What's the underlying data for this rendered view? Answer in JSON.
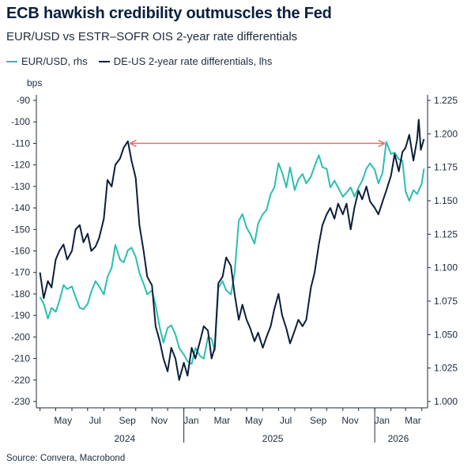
{
  "title": "ECB hawkish credibility outmuscles the Fed",
  "subtitle": "EUR/USD vs ESTR–SOFR OIS 2-year rate differentials",
  "source": "Source: Convera, Macrobond",
  "chart_data": {
    "type": "line",
    "legend_position": "top-left",
    "left_axis_unit": "bps",
    "left_axis": {
      "range": [
        -230,
        -90
      ],
      "ticks": [
        "-90",
        "-100",
        "-110",
        "-120",
        "-130",
        "-140",
        "-150",
        "-160",
        "-170",
        "-180",
        "-190",
        "-200",
        "-210",
        "-220",
        "-230"
      ]
    },
    "right_axis": {
      "range": [
        1.0,
        1.225
      ],
      "ticks": [
        "1.225",
        "1.200",
        "1.175",
        "1.150",
        "1.125",
        "1.100",
        "1.075",
        "1.050",
        "1.025",
        "1.000"
      ]
    },
    "x_ticks": [
      "May",
      "Jul",
      "Sep",
      "Nov",
      "Jan",
      "Mar",
      "May",
      "Jul",
      "Sep",
      "Nov",
      "Jan",
      "Mar"
    ],
    "x_years": [
      "2024",
      "2025",
      "2026"
    ],
    "annotation": {
      "type": "double-arrow",
      "color": "#e07070",
      "from": "2024-09-20",
      "to": "2026-01-20",
      "level": -110
    },
    "series": [
      {
        "name": "EUR/USD, rhs",
        "axis": "right",
        "color": "#2bbfb0",
        "points": [
          [
            "2024-04-01",
            1.078
          ],
          [
            "2024-04-08",
            1.073
          ],
          [
            "2024-04-16",
            1.062
          ],
          [
            "2024-04-23",
            1.07
          ],
          [
            "2024-05-01",
            1.067
          ],
          [
            "2024-05-08",
            1.075
          ],
          [
            "2024-05-16",
            1.087
          ],
          [
            "2024-05-23",
            1.084
          ],
          [
            "2024-06-01",
            1.086
          ],
          [
            "2024-06-08",
            1.078
          ],
          [
            "2024-06-16",
            1.07
          ],
          [
            "2024-06-23",
            1.069
          ],
          [
            "2024-07-01",
            1.073
          ],
          [
            "2024-07-08",
            1.082
          ],
          [
            "2024-07-16",
            1.09
          ],
          [
            "2024-07-23",
            1.086
          ],
          [
            "2024-08-01",
            1.08
          ],
          [
            "2024-08-08",
            1.093
          ],
          [
            "2024-08-16",
            1.1
          ],
          [
            "2024-08-23",
            1.117
          ],
          [
            "2024-09-01",
            1.106
          ],
          [
            "2024-09-08",
            1.104
          ],
          [
            "2024-09-16",
            1.113
          ],
          [
            "2024-09-23",
            1.115
          ],
          [
            "2024-10-01",
            1.108
          ],
          [
            "2024-10-08",
            1.096
          ],
          [
            "2024-10-16",
            1.088
          ],
          [
            "2024-10-23",
            1.08
          ],
          [
            "2024-11-01",
            1.083
          ],
          [
            "2024-11-08",
            1.072
          ],
          [
            "2024-11-16",
            1.055
          ],
          [
            "2024-11-23",
            1.044
          ],
          [
            "2024-12-01",
            1.055
          ],
          [
            "2024-12-08",
            1.057
          ],
          [
            "2024-12-16",
            1.05
          ],
          [
            "2024-12-23",
            1.04
          ],
          [
            "2025-01-01",
            1.035
          ],
          [
            "2025-01-08",
            1.03
          ],
          [
            "2025-01-16",
            1.028
          ],
          [
            "2025-01-23",
            1.04
          ],
          [
            "2025-02-01",
            1.034
          ],
          [
            "2025-02-08",
            1.032
          ],
          [
            "2025-02-16",
            1.048
          ],
          [
            "2025-02-23",
            1.047
          ],
          [
            "2025-03-01",
            1.038
          ],
          [
            "2025-03-08",
            1.085
          ],
          [
            "2025-03-16",
            1.09
          ],
          [
            "2025-03-23",
            1.083
          ],
          [
            "2025-04-01",
            1.08
          ],
          [
            "2025-04-08",
            1.096
          ],
          [
            "2025-04-16",
            1.135
          ],
          [
            "2025-04-23",
            1.14
          ],
          [
            "2025-05-01",
            1.13
          ],
          [
            "2025-05-08",
            1.125
          ],
          [
            "2025-05-16",
            1.118
          ],
          [
            "2025-05-23",
            1.133
          ],
          [
            "2025-06-01",
            1.14
          ],
          [
            "2025-06-08",
            1.143
          ],
          [
            "2025-06-16",
            1.155
          ],
          [
            "2025-06-23",
            1.16
          ],
          [
            "2025-07-01",
            1.178
          ],
          [
            "2025-07-08",
            1.171
          ],
          [
            "2025-07-16",
            1.16
          ],
          [
            "2025-07-23",
            1.175
          ],
          [
            "2025-08-01",
            1.158
          ],
          [
            "2025-08-08",
            1.166
          ],
          [
            "2025-08-16",
            1.17
          ],
          [
            "2025-08-23",
            1.163
          ],
          [
            "2025-09-01",
            1.168
          ],
          [
            "2025-09-08",
            1.176
          ],
          [
            "2025-09-16",
            1.184
          ],
          [
            "2025-09-23",
            1.175
          ],
          [
            "2025-10-01",
            1.174
          ],
          [
            "2025-10-08",
            1.16
          ],
          [
            "2025-10-16",
            1.165
          ],
          [
            "2025-10-23",
            1.16
          ],
          [
            "2025-11-01",
            1.153
          ],
          [
            "2025-11-08",
            1.156
          ],
          [
            "2025-11-16",
            1.16
          ],
          [
            "2025-11-23",
            1.153
          ],
          [
            "2025-12-01",
            1.16
          ],
          [
            "2025-12-08",
            1.165
          ],
          [
            "2025-12-16",
            1.174
          ],
          [
            "2025-12-23",
            1.178
          ],
          [
            "2026-01-01",
            1.173
          ],
          [
            "2026-01-08",
            1.163
          ],
          [
            "2026-01-16",
            1.171
          ],
          [
            "2026-01-23",
            1.194
          ],
          [
            "2026-02-01",
            1.185
          ],
          [
            "2026-02-08",
            1.186
          ],
          [
            "2026-02-16",
            1.181
          ],
          [
            "2026-02-23",
            1.18
          ],
          [
            "2026-03-01",
            1.157
          ],
          [
            "2026-03-08",
            1.15
          ],
          [
            "2026-03-16",
            1.158
          ],
          [
            "2026-03-23",
            1.155
          ],
          [
            "2026-04-01",
            1.163
          ],
          [
            "2026-04-05",
            1.174
          ]
        ]
      },
      {
        "name": "DE-US 2-year rate differentials, lhs",
        "axis": "left",
        "color": "#0c1e3c",
        "points": [
          [
            "2024-04-01",
            -170
          ],
          [
            "2024-04-08",
            -182
          ],
          [
            "2024-04-16",
            -174
          ],
          [
            "2024-04-23",
            -177
          ],
          [
            "2024-05-01",
            -164
          ],
          [
            "2024-05-08",
            -160
          ],
          [
            "2024-05-16",
            -157
          ],
          [
            "2024-05-23",
            -164
          ],
          [
            "2024-06-01",
            -160
          ],
          [
            "2024-06-08",
            -150
          ],
          [
            "2024-06-16",
            -148
          ],
          [
            "2024-06-23",
            -156
          ],
          [
            "2024-07-01",
            -152
          ],
          [
            "2024-07-08",
            -160
          ],
          [
            "2024-07-16",
            -158
          ],
          [
            "2024-07-23",
            -154
          ],
          [
            "2024-08-01",
            -145
          ],
          [
            "2024-08-08",
            -127
          ],
          [
            "2024-08-16",
            -130
          ],
          [
            "2024-08-23",
            -120
          ],
          [
            "2024-09-01",
            -117
          ],
          [
            "2024-09-08",
            -112
          ],
          [
            "2024-09-16",
            -109
          ],
          [
            "2024-09-23",
            -118
          ],
          [
            "2024-10-01",
            -126
          ],
          [
            "2024-10-08",
            -148
          ],
          [
            "2024-10-16",
            -160
          ],
          [
            "2024-10-23",
            -172
          ],
          [
            "2024-11-01",
            -176
          ],
          [
            "2024-11-08",
            -195
          ],
          [
            "2024-11-16",
            -202
          ],
          [
            "2024-11-23",
            -210
          ],
          [
            "2024-12-01",
            -216
          ],
          [
            "2024-12-08",
            -205
          ],
          [
            "2024-12-16",
            -210
          ],
          [
            "2024-12-23",
            -220
          ],
          [
            "2025-01-01",
            -212
          ],
          [
            "2025-01-08",
            -218
          ],
          [
            "2025-01-16",
            -205
          ],
          [
            "2025-01-23",
            -210
          ],
          [
            "2025-02-01",
            -202
          ],
          [
            "2025-02-08",
            -195
          ],
          [
            "2025-02-16",
            -197
          ],
          [
            "2025-02-23",
            -210
          ],
          [
            "2025-03-01",
            -205
          ],
          [
            "2025-03-08",
            -175
          ],
          [
            "2025-03-16",
            -172
          ],
          [
            "2025-03-23",
            -163
          ],
          [
            "2025-04-01",
            -167
          ],
          [
            "2025-04-08",
            -180
          ],
          [
            "2025-04-16",
            -192
          ],
          [
            "2025-04-23",
            -185
          ],
          [
            "2025-05-01",
            -192
          ],
          [
            "2025-05-08",
            -196
          ],
          [
            "2025-05-16",
            -202
          ],
          [
            "2025-05-23",
            -198
          ],
          [
            "2025-06-01",
            -205
          ],
          [
            "2025-06-08",
            -200
          ],
          [
            "2025-06-16",
            -195
          ],
          [
            "2025-06-23",
            -187
          ],
          [
            "2025-07-01",
            -180
          ],
          [
            "2025-07-08",
            -190
          ],
          [
            "2025-07-16",
            -196
          ],
          [
            "2025-07-23",
            -203
          ],
          [
            "2025-08-01",
            -197
          ],
          [
            "2025-08-08",
            -192
          ],
          [
            "2025-08-16",
            -195
          ],
          [
            "2025-08-23",
            -192
          ],
          [
            "2025-09-01",
            -177
          ],
          [
            "2025-09-08",
            -170
          ],
          [
            "2025-09-16",
            -157
          ],
          [
            "2025-09-23",
            -148
          ],
          [
            "2025-10-01",
            -143
          ],
          [
            "2025-10-08",
            -140
          ],
          [
            "2025-10-16",
            -145
          ],
          [
            "2025-10-23",
            -138
          ],
          [
            "2025-11-01",
            -143
          ],
          [
            "2025-11-08",
            -138
          ],
          [
            "2025-11-16",
            -150
          ],
          [
            "2025-11-23",
            -140
          ],
          [
            "2025-12-01",
            -132
          ],
          [
            "2025-12-08",
            -136
          ],
          [
            "2025-12-16",
            -130
          ],
          [
            "2025-12-23",
            -137
          ],
          [
            "2026-01-01",
            -140
          ],
          [
            "2026-01-08",
            -143
          ],
          [
            "2026-01-16",
            -137
          ],
          [
            "2026-01-23",
            -132
          ],
          [
            "2026-02-01",
            -125
          ],
          [
            "2026-02-08",
            -115
          ],
          [
            "2026-02-16",
            -123
          ],
          [
            "2026-02-23",
            -114
          ],
          [
            "2026-03-01",
            -112
          ],
          [
            "2026-03-08",
            -106
          ],
          [
            "2026-03-16",
            -118
          ],
          [
            "2026-03-23",
            -108
          ],
          [
            "2026-03-26",
            -99
          ],
          [
            "2026-03-30",
            -113
          ],
          [
            "2026-04-05",
            -108
          ]
        ]
      }
    ]
  }
}
